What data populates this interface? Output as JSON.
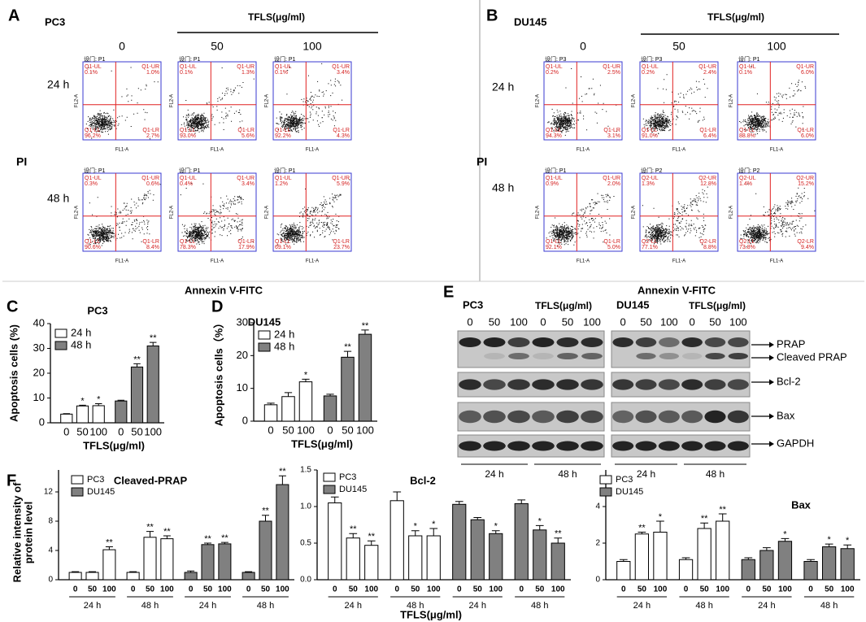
{
  "panel_a": {
    "letter": "A",
    "cell_line": "PC3",
    "treatment": "TFLS(μg/ml)",
    "doses": [
      "0",
      "50",
      "100"
    ],
    "times": [
      "24 h",
      "48 h"
    ],
    "y_axis": "PI",
    "x_axis": "Annexin V-FITC",
    "plot_y_label": "FL2-A",
    "plot_x_label": "FL1-A",
    "plots": [
      [
        {
          "gate": "设门: P1",
          "quadrants": [
            {
              "name": "Q1-UL",
              "value": "0.1%"
            },
            {
              "name": "Q1-UR",
              "value": "1.0%"
            },
            {
              "name": "Q1-LL",
              "value": "96.2%"
            },
            {
              "name": "Q1-LR",
              "value": "2.7%"
            }
          ]
        },
        {
          "gate": "设门: P1",
          "quadrants": [
            {
              "name": "Q1-UL",
              "value": "0.1%"
            },
            {
              "name": "Q1-UR",
              "value": "1.3%"
            },
            {
              "name": "Q1-LL",
              "value": "93.0%"
            },
            {
              "name": "Q1-LR",
              "value": "5.6%"
            }
          ]
        },
        {
          "gate": "设门: P1",
          "quadrants": [
            {
              "name": "Q1-UL",
              "value": "0.1%"
            },
            {
              "name": "Q1-UR",
              "value": "3.4%"
            },
            {
              "name": "Q1-LL",
              "value": "92.2%"
            },
            {
              "name": "Q1-LR",
              "value": "4.3%"
            }
          ]
        }
      ],
      [
        {
          "gate": "设门: P1",
          "quadrants": [
            {
              "name": "Q1-UL",
              "value": "0.3%"
            },
            {
              "name": "Q1-UR",
              "value": "0.6%"
            },
            {
              "name": "Q1-LL",
              "value": "90.6%"
            },
            {
              "name": "Q1-LR",
              "value": "8.4%"
            }
          ]
        },
        {
          "gate": "设门: P1",
          "quadrants": [
            {
              "name": "Q1-UL",
              "value": "0.4%"
            },
            {
              "name": "Q1-UR",
              "value": "3.4%"
            },
            {
              "name": "Q1-LL",
              "value": "78.3%"
            },
            {
              "name": "Q1-LR",
              "value": "17.9%"
            }
          ]
        },
        {
          "gate": "设门: P1",
          "quadrants": [
            {
              "name": "Q1-UL",
              "value": "1.2%"
            },
            {
              "name": "Q1-UR",
              "value": "5.9%"
            },
            {
              "name": "Q1-LL",
              "value": "69.1%"
            },
            {
              "name": "Q1-LR",
              "value": "23.7%"
            }
          ]
        }
      ]
    ]
  },
  "panel_b": {
    "letter": "B",
    "cell_line": "DU145",
    "treatment": "TFLS(μg/ml)",
    "doses": [
      "0",
      "50",
      "100"
    ],
    "times": [
      "24 h",
      "48 h"
    ],
    "y_axis": "PI",
    "x_axis": "Annexin V-FITC",
    "plot_y_label": "FL2-A",
    "plot_x_label": "FL1-A",
    "plots": [
      [
        {
          "gate": "设门: P3",
          "quadrants": [
            {
              "name": "Q1-UL",
              "value": "0.2%"
            },
            {
              "name": "Q1-UR",
              "value": "2.5%"
            },
            {
              "name": "Q1-LL",
              "value": "94.3%"
            },
            {
              "name": "Q1-LR",
              "value": "3.1%"
            }
          ]
        },
        {
          "gate": "设门: P3",
          "quadrants": [
            {
              "name": "Q1-UL",
              "value": "0.2%"
            },
            {
              "name": "Q1-UR",
              "value": "2.4%"
            },
            {
              "name": "Q1-LL",
              "value": "91.0%"
            },
            {
              "name": "Q1-LR",
              "value": "6.4%"
            }
          ]
        },
        {
          "gate": "设门: P1",
          "quadrants": [
            {
              "name": "Q1-UL",
              "value": "0.1%"
            },
            {
              "name": "Q1-UR",
              "value": "6.0%"
            },
            {
              "name": "Q1-LL",
              "value": "88.8%"
            },
            {
              "name": "Q1-LR",
              "value": "6.0%"
            }
          ]
        }
      ],
      [
        {
          "gate": "设门: P1",
          "quadrants": [
            {
              "name": "Q1-UL",
              "value": "0.9%"
            },
            {
              "name": "Q1-UR",
              "value": "2.0%"
            },
            {
              "name": "Q1-LL",
              "value": "92.1%"
            },
            {
              "name": "Q1-LR",
              "value": "5.0%"
            }
          ]
        },
        {
          "gate": "设门: P2",
          "quadrants": [
            {
              "name": "Q2-UL",
              "value": "1.3%"
            },
            {
              "name": "Q2-UR",
              "value": "12.8%"
            },
            {
              "name": "Q2-LL",
              "value": "77.1%"
            },
            {
              "name": "Q2-LR",
              "value": "8.8%"
            }
          ]
        },
        {
          "gate": "设门: P2",
          "quadrants": [
            {
              "name": "Q2-UL",
              "value": "1.4%"
            },
            {
              "name": "Q2-UR",
              "value": "15.2%"
            },
            {
              "name": "Q2-LL",
              "value": "73.8%"
            },
            {
              "name": "Q2-LR",
              "value": "9.4%"
            }
          ]
        }
      ]
    ]
  },
  "panel_e": {
    "letter": "E",
    "bands": [
      "PRAP",
      "Cleaved PRAP",
      "Bcl-2",
      "Bax",
      "GAPDH"
    ],
    "blots": [
      {
        "cell_line": "PC3",
        "treatment": "TFLS(μg/ml)",
        "lanes": [
          "0",
          "50",
          "100",
          "0",
          "50",
          "100"
        ],
        "times": [
          "24 h",
          "48 h"
        ]
      },
      {
        "cell_line": "DU145",
        "treatment": "TFLS(μg/ml)",
        "lanes": [
          "0",
          "50",
          "100",
          "0",
          "50",
          "100"
        ],
        "times": [
          "24 h",
          "48 h"
        ]
      }
    ]
  },
  "panel_f": {
    "letter": "F",
    "ylabel": [
      "Relative intensity of",
      "protein level"
    ],
    "xlabel": "TFLS(μg/ml)"
  },
  "chart_data": [
    {
      "type": "bar",
      "panel": "C",
      "title": "PC3",
      "ylabel": "Apoptosis cells (%)",
      "xlabel": "TFLS(μg/ml)",
      "categories": [
        "0",
        "50",
        "100",
        "0",
        "50",
        "100"
      ],
      "series": [
        {
          "name": "24 h",
          "color": "#ffffff",
          "values": [
            3.5,
            6.8,
            6.9,
            null,
            null,
            null
          ],
          "errors": [
            0.2,
            0.3,
            0.8,
            null,
            null,
            null
          ]
        },
        {
          "name": "48 h",
          "color": "#808080",
          "values": [
            null,
            null,
            null,
            8.8,
            22.5,
            31
          ],
          "errors": [
            null,
            null,
            null,
            0.3,
            1.3,
            1.4
          ]
        }
      ],
      "significance": [
        null,
        "*",
        "*",
        null,
        "**",
        "**"
      ],
      "ylim": [
        0,
        40
      ],
      "yticks": [
        0,
        10,
        20,
        30,
        40
      ]
    },
    {
      "type": "bar",
      "panel": "D",
      "title": "DU145",
      "ylabel": "Apoptosis cells（%）",
      "xlabel": "TFLS(μg/ml)",
      "categories": [
        "0",
        "50",
        "100",
        "0",
        "50",
        "100"
      ],
      "series": [
        {
          "name": "24 h",
          "color": "#ffffff",
          "values": [
            5,
            7.5,
            12,
            null,
            null,
            null
          ],
          "errors": [
            0.5,
            1.2,
            0.8,
            null,
            null,
            null
          ]
        },
        {
          "name": "48 h",
          "color": "#808080",
          "values": [
            null,
            null,
            null,
            7.7,
            19.5,
            26.5
          ],
          "errors": [
            null,
            null,
            null,
            0.5,
            1.8,
            1.3
          ]
        }
      ],
      "significance": [
        null,
        null,
        "*",
        null,
        "**",
        "**"
      ],
      "ylim": [
        0,
        30
      ],
      "yticks": [
        0,
        10,
        20,
        30
      ]
    },
    {
      "type": "bar",
      "title": "Cleaved-PRAP",
      "categories": [
        "0",
        "50",
        "100",
        "0",
        "50",
        "100",
        "0",
        "50",
        "100",
        "0",
        "50",
        "100"
      ],
      "groups": [
        "24 h",
        "48 h",
        "24 h",
        "48 h"
      ],
      "series": [
        {
          "name": "PC3",
          "color": "#ffffff",
          "values": [
            1,
            1,
            4.1,
            1,
            5.8,
            5.6,
            null,
            null,
            null,
            null,
            null,
            null
          ],
          "errors": [
            0.1,
            0.1,
            0.4,
            0.1,
            0.8,
            0.4,
            null,
            null,
            null,
            null,
            null,
            null
          ]
        },
        {
          "name": "DU145",
          "color": "#808080",
          "values": [
            null,
            null,
            null,
            null,
            null,
            null,
            1,
            4.8,
            4.9,
            1,
            8,
            13
          ],
          "errors": [
            null,
            null,
            null,
            null,
            null,
            null,
            0.2,
            0.2,
            0.2,
            0.1,
            0.8,
            1.2
          ]
        }
      ],
      "significance": [
        null,
        null,
        "**",
        null,
        "**",
        "**",
        null,
        "**",
        "**",
        null,
        "**",
        "**"
      ],
      "ylim": [
        0,
        15
      ],
      "yticks": [
        0,
        4,
        8,
        12
      ]
    },
    {
      "type": "bar",
      "title": "Bcl-2",
      "categories": [
        "0",
        "50",
        "100",
        "0",
        "50",
        "100",
        "0",
        "50",
        "100",
        "0",
        "50",
        "100"
      ],
      "groups": [
        "24 h",
        "48 h",
        "24 h",
        "48 h"
      ],
      "series": [
        {
          "name": "PC3",
          "color": "#ffffff",
          "values": [
            1.05,
            0.57,
            0.47,
            1.08,
            0.6,
            0.6,
            null,
            null,
            null,
            null,
            null,
            null
          ],
          "errors": [
            0.08,
            0.06,
            0.06,
            0.12,
            0.07,
            0.1,
            null,
            null,
            null,
            null,
            null,
            null
          ]
        },
        {
          "name": "DU145",
          "color": "#808080",
          "values": [
            null,
            null,
            null,
            null,
            null,
            null,
            1.03,
            0.82,
            0.63,
            1.04,
            0.68,
            0.5
          ],
          "errors": [
            null,
            null,
            null,
            null,
            null,
            null,
            0.04,
            0.03,
            0.04,
            0.05,
            0.06,
            0.07
          ]
        }
      ],
      "significance": [
        null,
        "**",
        "**",
        null,
        "*",
        "*",
        null,
        null,
        "*",
        null,
        "*",
        "**"
      ],
      "ylim": [
        0,
        1.5
      ],
      "yticks": [
        {
          "value": 0,
          "label": "0.0"
        },
        0.5,
        {
          "value": 1,
          "label": "1.0"
        },
        1.5
      ]
    },
    {
      "type": "bar",
      "title": "Bax",
      "categories": [
        "0",
        "50",
        "100",
        "0",
        "50",
        "100",
        "0",
        "50",
        "100",
        "0",
        "50",
        "100"
      ],
      "groups": [
        "24 h",
        "48 h",
        "24 h",
        "48 h"
      ],
      "series": [
        {
          "name": "PC3",
          "color": "#ffffff",
          "values": [
            1,
            2.5,
            2.6,
            1.1,
            2.8,
            3.2,
            null,
            null,
            null,
            null,
            null,
            null
          ],
          "errors": [
            0.1,
            0.1,
            0.6,
            0.1,
            0.3,
            0.4,
            null,
            null,
            null,
            null,
            null,
            null
          ]
        },
        {
          "name": "DU145",
          "color": "#808080",
          "values": [
            null,
            null,
            null,
            null,
            null,
            null,
            1.1,
            1.6,
            2.1,
            1,
            1.8,
            1.7
          ],
          "errors": [
            null,
            null,
            null,
            null,
            null,
            null,
            0.1,
            0.15,
            0.15,
            0.1,
            0.15,
            0.2
          ]
        }
      ],
      "significance": [
        null,
        "**",
        "*",
        null,
        "**",
        "**",
        null,
        null,
        "*",
        null,
        "*",
        "*"
      ],
      "ylim": [
        0,
        6
      ],
      "yticks": [
        0,
        2,
        4
      ]
    }
  ]
}
